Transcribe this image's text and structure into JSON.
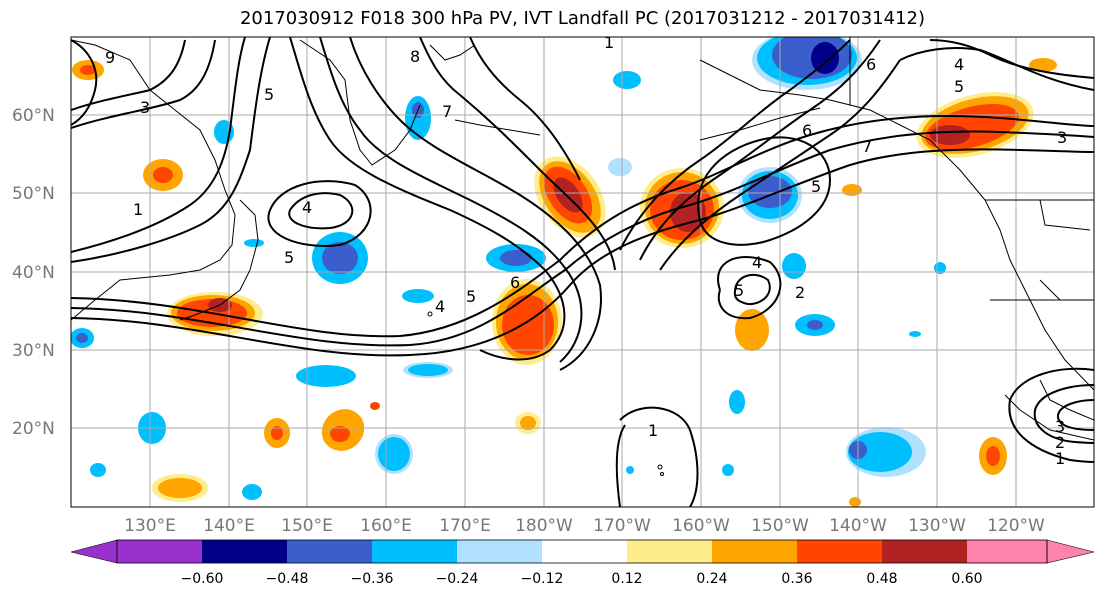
{
  "title": "2017030912 F018 300 hPa PV, IVT Landfall PC (2017031212 - 2017031412)",
  "lat_labels": [
    "60°N",
    "50°N",
    "40°N",
    "30°N",
    "20°N"
  ],
  "lon_labels": [
    "130°E",
    "140°E",
    "150°E",
    "160°E",
    "170°E",
    "180°W",
    "170°W",
    "160°W",
    "150°W",
    "140°W",
    "130°W",
    "120°W"
  ],
  "colorbar": {
    "ticks": [
      "−0.60",
      "−0.48",
      "−0.36",
      "−0.24",
      "−0.12",
      "0.12",
      "0.24",
      "0.36",
      "0.48",
      "0.60"
    ],
    "colors": [
      "#9932CC",
      "#00008B",
      "#3A5FCD",
      "#00BFFF",
      "#B0E2FF",
      "#FFFFFF",
      "#FFEC8B",
      "#FFA500",
      "#FF4500",
      "#B22222",
      "#FF82AB"
    ]
  },
  "contour_labels": [
    "1",
    "2",
    "3",
    "4",
    "5",
    "6",
    "7",
    "8",
    "9"
  ],
  "map_extent": {
    "lon_min": 120,
    "lon_max": 250,
    "lat_min": 10,
    "lat_max": 70
  }
}
